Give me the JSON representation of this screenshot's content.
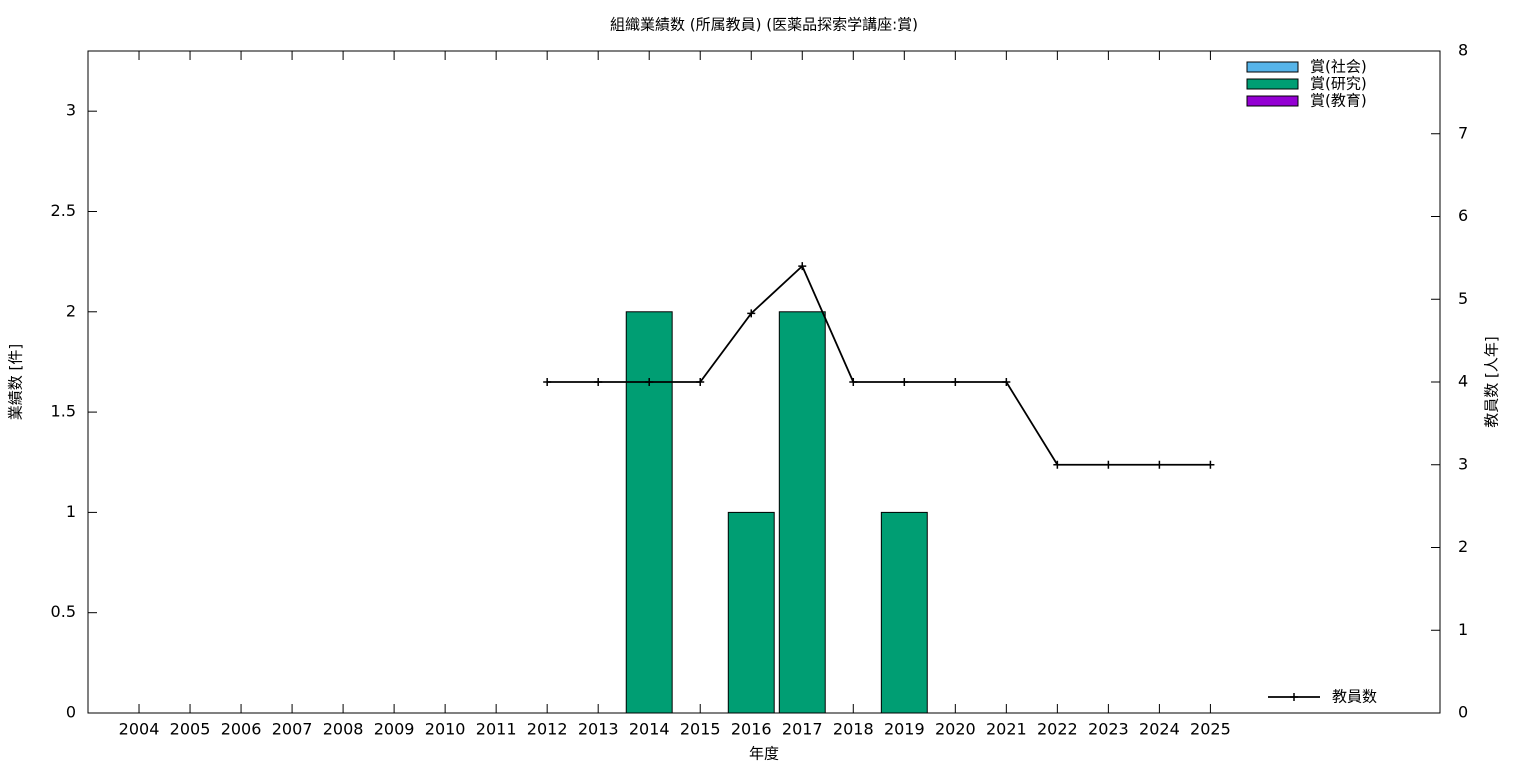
{
  "chart_data": {
    "type": "bar",
    "title": "組織業績数 (所属教員) (医薬品探索学講座:賞)",
    "x_label": "年度",
    "y_label": "業績数 [件]",
    "y2_label": "教員数 [人年]",
    "x": [
      2004,
      2005,
      2006,
      2007,
      2008,
      2009,
      2010,
      2011,
      2012,
      2013,
      2014,
      2015,
      2016,
      2017,
      2018,
      2019,
      2020,
      2021,
      2022,
      2023,
      2024,
      2025
    ],
    "xlim": [
      2003,
      2029.5
    ],
    "ylim": [
      0,
      3.3
    ],
    "yticks": [
      0,
      0.5,
      1,
      1.5,
      2,
      2.5,
      3
    ],
    "y2lim": [
      0,
      8
    ],
    "y2ticks": [
      0,
      1,
      2,
      3,
      4,
      5,
      6,
      7,
      8
    ],
    "stacked": true,
    "series": [
      {
        "name": "賞(社会)",
        "color": "#56b4e9",
        "values": [
          0,
          0,
          0,
          0,
          0,
          0,
          0,
          0,
          0,
          0,
          0,
          0,
          0,
          0,
          0,
          0,
          0,
          0,
          0,
          0,
          0,
          0
        ]
      },
      {
        "name": "賞(研究)",
        "color": "#009e73",
        "values": [
          0,
          0,
          0,
          0,
          0,
          0,
          0,
          0,
          0,
          0,
          2,
          0,
          1,
          2,
          0,
          1,
          0,
          0,
          0,
          0,
          0,
          0
        ]
      },
      {
        "name": "賞(教育)",
        "color": "#9400d3",
        "values": [
          0,
          0,
          0,
          0,
          0,
          0,
          0,
          0,
          0,
          0,
          0,
          0,
          0,
          0,
          0,
          0,
          0,
          0,
          0,
          0,
          0,
          0
        ]
      },
      {
        "name": "教員数",
        "color": "#000000",
        "type": "line",
        "axis": "y2",
        "values": [
          null,
          null,
          null,
          null,
          null,
          null,
          null,
          null,
          4,
          4,
          4,
          4,
          4.83,
          5.4,
          4,
          4,
          4,
          4,
          3,
          3,
          3,
          3
        ]
      }
    ]
  }
}
